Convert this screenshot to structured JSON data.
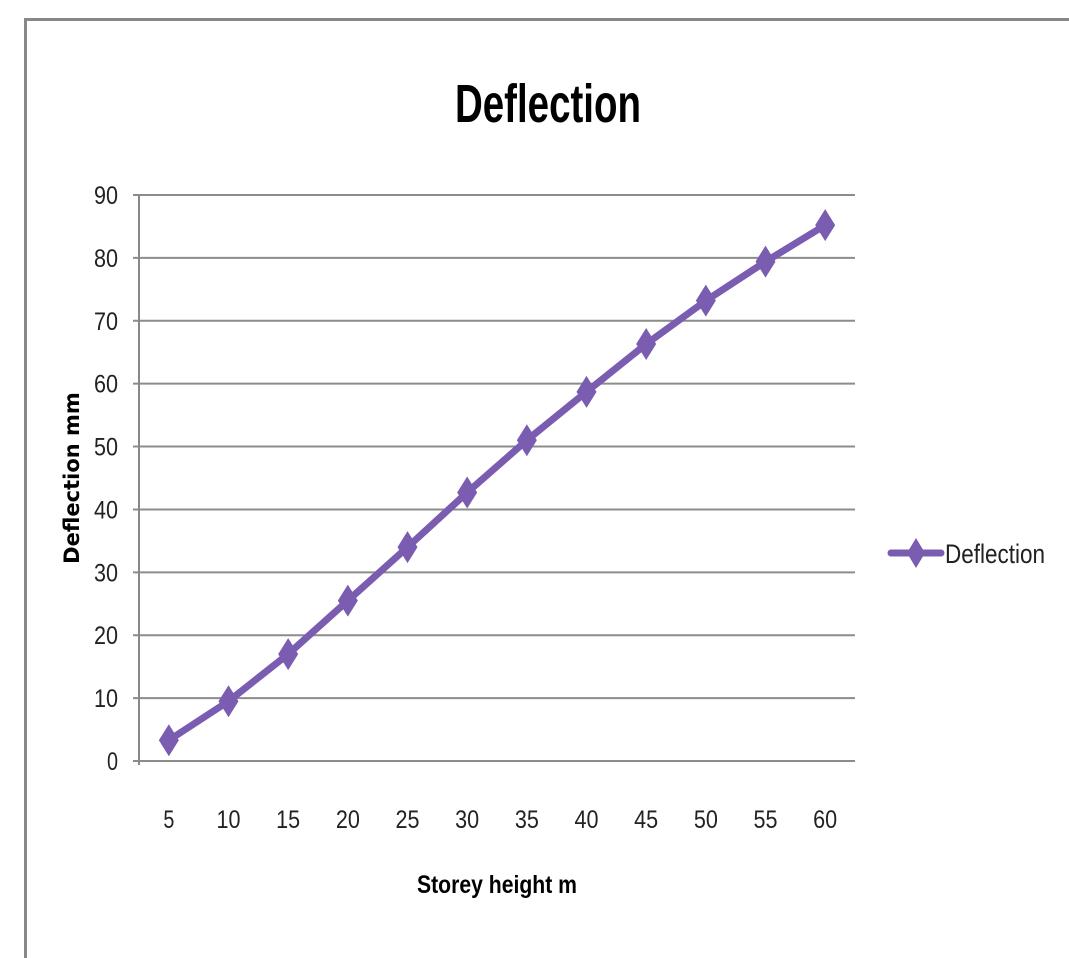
{
  "chart_data": {
    "type": "line",
    "title": "Deflection",
    "xlabel": "Storey height m",
    "ylabel": "Deflection mm",
    "categories": [
      "5",
      "10",
      "15",
      "20",
      "25",
      "30",
      "35",
      "40",
      "45",
      "50",
      "55",
      "60"
    ],
    "series": [
      {
        "name": "Deflection",
        "color": "#7a5cb0",
        "marker": "diamond",
        "values": [
          3.3,
          9.5,
          17.0,
          25.5,
          34.0,
          42.7,
          51.0,
          58.7,
          66.3,
          73.2,
          79.4,
          85.2
        ]
      }
    ],
    "ylim": [
      0,
      90
    ],
    "yticks": [
      0,
      10,
      20,
      30,
      40,
      50,
      60,
      70,
      80,
      90
    ],
    "grid": true,
    "legend_position": "right"
  },
  "title": "Deflection",
  "xaxis": {
    "label": "Storey height m"
  },
  "yaxis": {
    "label": "Deflection mm"
  },
  "legend": {
    "label": "Deflection"
  }
}
